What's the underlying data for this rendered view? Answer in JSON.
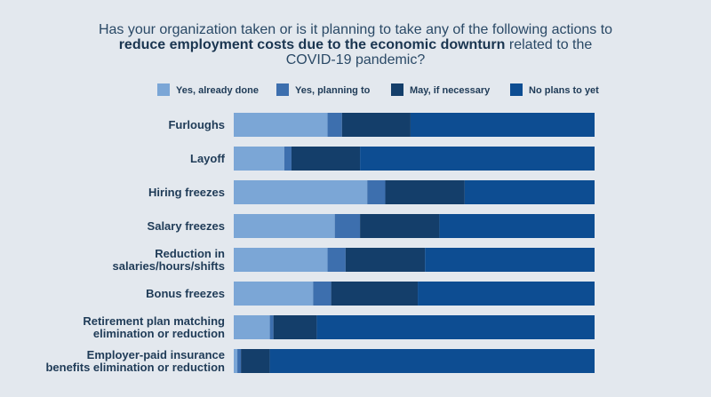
{
  "chart_data": {
    "type": "bar",
    "orientation": "horizontal",
    "stacked": true,
    "normalized": true,
    "title_lines": [
      [
        {
          "text": "Has your organization taken or is it planning to take any of the following actions to",
          "bold": false
        }
      ],
      [
        {
          "text": "reduce employment costs due to the economic downturn",
          "bold": true
        },
        {
          "text": " related to the",
          "bold": false
        }
      ],
      [
        {
          "text": "COVID-19 pandemic?",
          "bold": false
        }
      ]
    ],
    "legend_position": "top",
    "categories": [
      [
        "Furloughs"
      ],
      [
        "Layoff"
      ],
      [
        "Hiring freezes"
      ],
      [
        "Salary freezes"
      ],
      [
        "Reduction in",
        "salaries/hours/shifts"
      ],
      [
        "Bonus freezes"
      ],
      [
        "Retirement plan matching",
        "elimination or reduction"
      ],
      [
        "Employer-paid insurance",
        "benefits elimination or reduction"
      ]
    ],
    "series": [
      {
        "name": "Yes, already done",
        "color": "#7ba6d6",
        "values": [
          26,
          14,
          37,
          28,
          26,
          22,
          10,
          1
        ]
      },
      {
        "name": "Yes, planning to",
        "color": "#3d6fae",
        "values": [
          4,
          2,
          5,
          7,
          5,
          5,
          1,
          1
        ]
      },
      {
        "name": "May, if necessary",
        "color": "#143e6a",
        "values": [
          19,
          19,
          22,
          22,
          22,
          24,
          12,
          8
        ]
      },
      {
        "name": "No plans to yet",
        "color": "#0d4d92",
        "values": [
          51,
          65,
          36,
          43,
          47,
          49,
          77,
          90
        ]
      }
    ],
    "xlim": [
      0,
      100
    ]
  }
}
